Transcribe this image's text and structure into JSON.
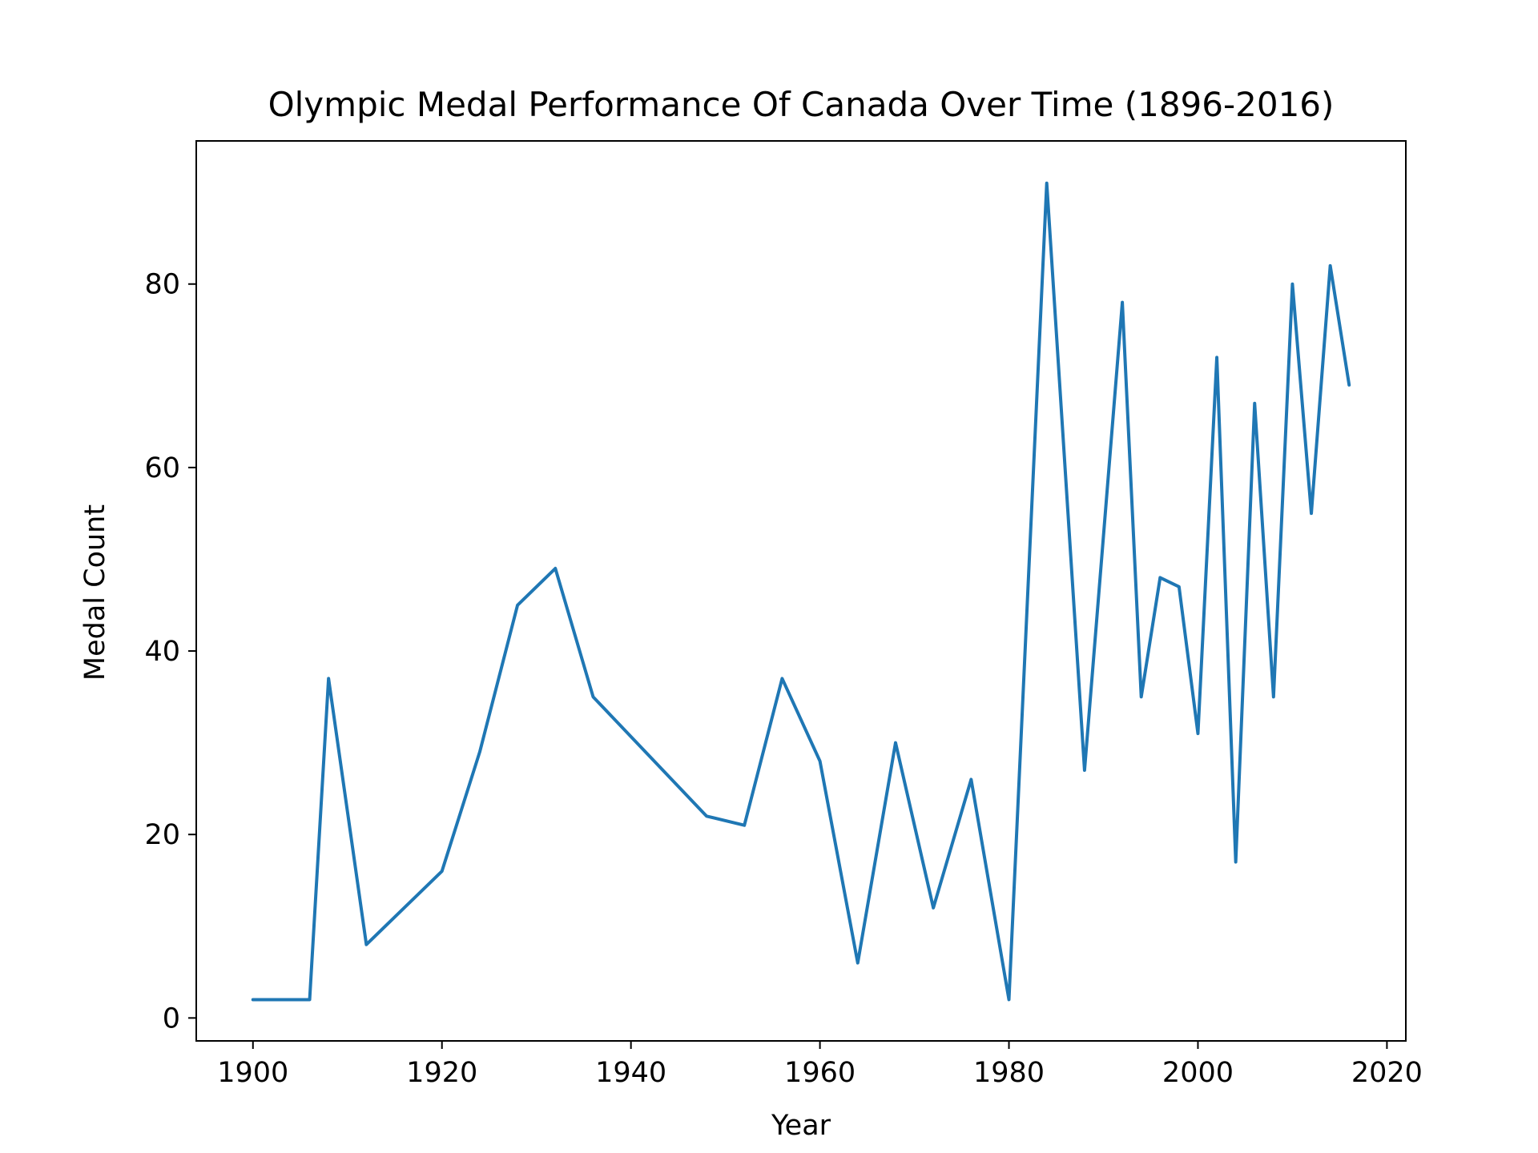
{
  "chart_data": {
    "type": "line",
    "title": "Olympic Medal Performance Of Canada Over Time (1896-2016)",
    "xlabel": "Year",
    "ylabel": "Medal Count",
    "xlim": [
      1894,
      2022
    ],
    "ylim": [
      -2.5,
      95.6
    ],
    "x_ticks": [
      1900,
      1920,
      1940,
      1960,
      1980,
      2000,
      2020
    ],
    "y_ticks": [
      0,
      20,
      40,
      60,
      80
    ],
    "grid": false,
    "legend": "none",
    "series": [
      {
        "color": "#1f77b4",
        "points": [
          {
            "x": 1900,
            "y": 2
          },
          {
            "x": 1904,
            "y": 2
          },
          {
            "x": 1906,
            "y": 2
          },
          {
            "x": 1908,
            "y": 37
          },
          {
            "x": 1912,
            "y": 8
          },
          {
            "x": 1920,
            "y": 16
          },
          {
            "x": 1924,
            "y": 29
          },
          {
            "x": 1928,
            "y": 45
          },
          {
            "x": 1932,
            "y": 49
          },
          {
            "x": 1936,
            "y": 35
          },
          {
            "x": 1948,
            "y": 22
          },
          {
            "x": 1952,
            "y": 21
          },
          {
            "x": 1956,
            "y": 37
          },
          {
            "x": 1960,
            "y": 28
          },
          {
            "x": 1964,
            "y": 6
          },
          {
            "x": 1968,
            "y": 30
          },
          {
            "x": 1972,
            "y": 12
          },
          {
            "x": 1976,
            "y": 26
          },
          {
            "x": 1980,
            "y": 2
          },
          {
            "x": 1984,
            "y": 91
          },
          {
            "x": 1988,
            "y": 27
          },
          {
            "x": 1992,
            "y": 78
          },
          {
            "x": 1994,
            "y": 35
          },
          {
            "x": 1996,
            "y": 48
          },
          {
            "x": 1998,
            "y": 47
          },
          {
            "x": 2000,
            "y": 31
          },
          {
            "x": 2002,
            "y": 72
          },
          {
            "x": 2004,
            "y": 17
          },
          {
            "x": 2006,
            "y": 67
          },
          {
            "x": 2008,
            "y": 35
          },
          {
            "x": 2010,
            "y": 80
          },
          {
            "x": 2012,
            "y": 55
          },
          {
            "x": 2014,
            "y": 82
          },
          {
            "x": 2016,
            "y": 69
          }
        ]
      }
    ]
  }
}
